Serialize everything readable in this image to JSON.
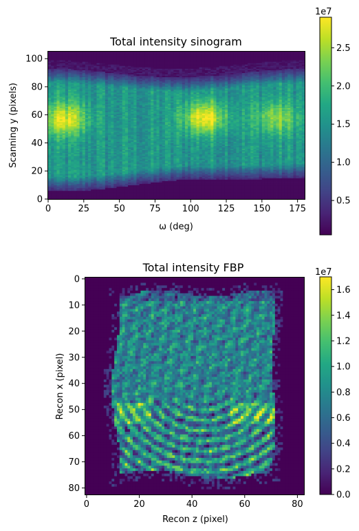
{
  "chart_data": [
    {
      "type": "heatmap",
      "title": "Total intensity sinogram",
      "xlabel": "ω (deg)",
      "ylabel": "Scanning y (pixels)",
      "xlim": [
        0,
        180
      ],
      "ylim": [
        0,
        105
      ],
      "xticks": [
        "0",
        "25",
        "50",
        "75",
        "100",
        "125",
        "150",
        "175"
      ],
      "yticks": [
        "0",
        "20",
        "40",
        "60",
        "80",
        "100"
      ],
      "colormap": "viridis",
      "colorbar": {
        "range": [
          500000.0,
          29000000.0
        ],
        "ticks": [
          "0.5",
          "1.0",
          "1.5",
          "2.0",
          "2.5"
        ],
        "exponent": "1e7"
      },
      "features": {
        "signal_band": "y from ~12 to ~90, boundaries vary sinusoidally with ω",
        "hotspots": [
          {
            "omega": 12,
            "y": 57,
            "relative": 0.85
          },
          {
            "omega": 110,
            "y": 58,
            "relative": 0.95
          },
          {
            "omega": 160,
            "y": 58,
            "relative": 0.6
          }
        ]
      }
    },
    {
      "type": "heatmap",
      "title": "Total intensity FBP",
      "xlabel": "Recon z (pixel)",
      "ylabel": "Recon x (pixel)",
      "xlim": [
        0,
        83
      ],
      "ylim": [
        83,
        0
      ],
      "xticks": [
        "0",
        "20",
        "40",
        "60",
        "80"
      ],
      "yticks": [
        "0",
        "10",
        "20",
        "30",
        "40",
        "50",
        "60",
        "70",
        "80"
      ],
      "colormap": "viridis",
      "colorbar": {
        "range": [
          0,
          17000000.0
        ],
        "ticks": [
          "0.0",
          "0.2",
          "0.4",
          "0.6",
          "0.8",
          "1.0",
          "1.2",
          "1.4",
          "1.6"
        ],
        "exponent": "1e7"
      },
      "features": {
        "signal_region": "roughly square block z 11–72, x 6–77, background near zero",
        "ring_artifacts": "concentric arcs in lower half centred near z≈45, x≈35"
      }
    }
  ]
}
